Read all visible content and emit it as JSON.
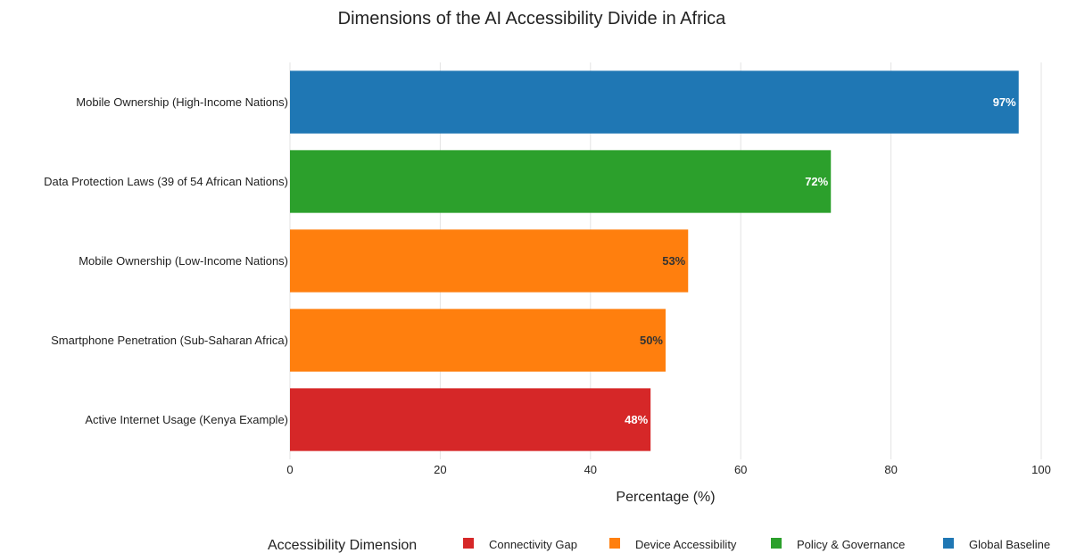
{
  "chart_data": {
    "type": "bar",
    "orientation": "horizontal",
    "title": "Dimensions of the AI Accessibility Divide in Africa",
    "xlabel": "Percentage (%)",
    "ylabel": "",
    "xlim": [
      0,
      100
    ],
    "xticks": [
      0,
      20,
      40,
      60,
      80,
      100
    ],
    "grid": true,
    "categories": [
      "Mobile Ownership (High-Income Nations)",
      "Data Protection Laws (39 of 54 African Nations)",
      "Mobile Ownership (Low-Income Nations)",
      "Smartphone Penetration (Sub-Saharan Africa)",
      "Active Internet Usage (Kenya Example)"
    ],
    "values": [
      97,
      72,
      53,
      50,
      48
    ],
    "data_labels": [
      "97%",
      "72%",
      "53%",
      "50%",
      "48%"
    ],
    "bar_groups": [
      "Global Baseline",
      "Policy & Governance",
      "Device Accessibility",
      "Device Accessibility",
      "Connectivity Gap"
    ],
    "label_colors": [
      "#ffffff",
      "#ffffff",
      "#333333",
      "#333333",
      "#ffffff"
    ],
    "legend": {
      "title": "Accessibility Dimension",
      "placement": "bottom",
      "entries": [
        {
          "name": "Connectivity Gap",
          "color": "#d62728"
        },
        {
          "name": "Device Accessibility",
          "color": "#ff7f0e"
        },
        {
          "name": "Policy & Governance",
          "color": "#2ca02c"
        },
        {
          "name": "Global Baseline",
          "color": "#1f77b4"
        }
      ]
    }
  }
}
